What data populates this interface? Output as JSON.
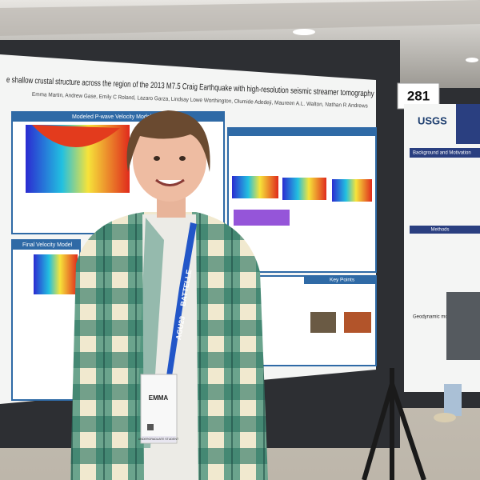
{
  "poster": {
    "title": "e shallow crustal structure across the region of the 2013 M7.5 Craig Earthquake with high-resolution seismic streamer tomography",
    "authors": "Emma Martin, Andrew Gase, Emily C Roland, Lazaro Garza, Lindsay Lowe Worthington, Olumide Adedeji, Maureen A.L. Walton, Nathan R Andrews",
    "sections": [
      "Modeled P-wave Velocity Models",
      "Final Velocity Model",
      "Key Points"
    ]
  },
  "sign": {
    "number": "281"
  },
  "right_poster": {
    "logo": "USGS",
    "sections": [
      "Background and Motivation",
      "Methods"
    ],
    "subheading": "Geodynamic modeling"
  },
  "lanyard": {
    "brand": "BATTELLE",
    "event": "AGU23"
  },
  "badge": {
    "name": "EMMA",
    "role": "UNDERGRADUATE STUDENT"
  }
}
